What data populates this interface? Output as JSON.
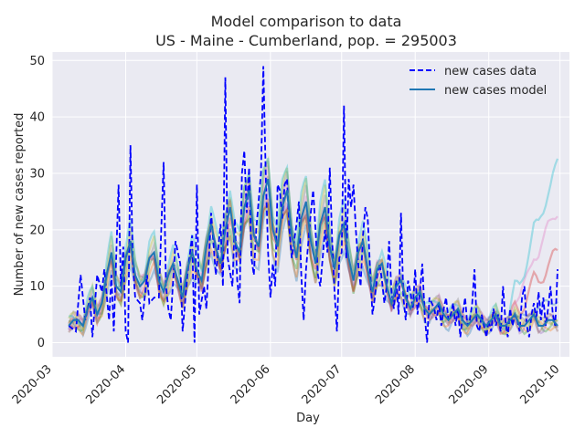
{
  "chart_data": {
    "type": "line",
    "title": "Model comparison to data",
    "subtitle": "US - Maine - Cumberland, pop. = 295003",
    "xlabel": "Day",
    "ylabel": "Number of new cases reported",
    "x_range": [
      "2020-03-01",
      "2020-10-05"
    ],
    "ylim": [
      -2.5,
      51.5
    ],
    "x_ticks": [
      "2020-03",
      "2020-04",
      "2020-05",
      "2020-06",
      "2020-07",
      "2020-08",
      "2020-09",
      "2020-10"
    ],
    "y_ticks": [
      0,
      10,
      20,
      30,
      40,
      50
    ],
    "grid": true,
    "legend_position": "top-right",
    "style": {
      "background": "#eaeaf2",
      "data_color": "#0000ff",
      "model_color": "#1f77b4",
      "ensemble_colors": [
        "#1f77b4",
        "#ff7f0e",
        "#2ca02c",
        "#d62728",
        "#9467bd",
        "#8c564b",
        "#e377c2",
        "#7f7f7f",
        "#bcbd22",
        "#17becf"
      ]
    },
    "series": [
      {
        "name": "new cases data",
        "style": "dashed",
        "points": [
          [
            "2020-03-08",
            3
          ],
          [
            "2020-03-11",
            2
          ],
          [
            "2020-03-13",
            12
          ],
          [
            "2020-03-15",
            4
          ],
          [
            "2020-03-17",
            8
          ],
          [
            "2020-03-18",
            1
          ],
          [
            "2020-03-20",
            12
          ],
          [
            "2020-03-22",
            9
          ],
          [
            "2020-03-23",
            13
          ],
          [
            "2020-03-25",
            4
          ],
          [
            "2020-03-26",
            12
          ],
          [
            "2020-03-27",
            2
          ],
          [
            "2020-03-29",
            28
          ],
          [
            "2020-03-30",
            10
          ],
          [
            "2020-03-31",
            17
          ],
          [
            "2020-04-01",
            2
          ],
          [
            "2020-04-02",
            0
          ],
          [
            "2020-04-03",
            35
          ],
          [
            "2020-04-04",
            14
          ],
          [
            "2020-04-05",
            8
          ],
          [
            "2020-04-07",
            7
          ],
          [
            "2020-04-08",
            4
          ],
          [
            "2020-04-10",
            12
          ],
          [
            "2020-04-11",
            7
          ],
          [
            "2020-04-13",
            8
          ],
          [
            "2020-04-15",
            8
          ],
          [
            "2020-04-17",
            32
          ],
          [
            "2020-04-18",
            10
          ],
          [
            "2020-04-19",
            6
          ],
          [
            "2020-04-20",
            4
          ],
          [
            "2020-04-22",
            18
          ],
          [
            "2020-04-24",
            14
          ],
          [
            "2020-04-25",
            2
          ],
          [
            "2020-04-27",
            12
          ],
          [
            "2020-04-29",
            19
          ],
          [
            "2020-04-30",
            0
          ],
          [
            "2020-05-01",
            28
          ],
          [
            "2020-05-02",
            5
          ],
          [
            "2020-05-04",
            10
          ],
          [
            "2020-05-05",
            6
          ],
          [
            "2020-05-07",
            23
          ],
          [
            "2020-05-09",
            12
          ],
          [
            "2020-05-11",
            21
          ],
          [
            "2020-05-12",
            10
          ],
          [
            "2020-05-13",
            47
          ],
          [
            "2020-05-14",
            15
          ],
          [
            "2020-05-16",
            10
          ],
          [
            "2020-05-17",
            22
          ],
          [
            "2020-05-18",
            11
          ],
          [
            "2020-05-19",
            7
          ],
          [
            "2020-05-20",
            30
          ],
          [
            "2020-05-21",
            34
          ],
          [
            "2020-05-22",
            23
          ],
          [
            "2020-05-23",
            31
          ],
          [
            "2020-05-24",
            15
          ],
          [
            "2020-05-25",
            12
          ],
          [
            "2020-05-26",
            20
          ],
          [
            "2020-05-28",
            30
          ],
          [
            "2020-05-29",
            49
          ],
          [
            "2020-05-30",
            30
          ],
          [
            "2020-05-31",
            16
          ],
          [
            "2020-06-01",
            8
          ],
          [
            "2020-06-02",
            14
          ],
          [
            "2020-06-03",
            10
          ],
          [
            "2020-06-04",
            28
          ],
          [
            "2020-06-05",
            27
          ],
          [
            "2020-06-06",
            22
          ],
          [
            "2020-06-07",
            28
          ],
          [
            "2020-06-08",
            29
          ],
          [
            "2020-06-09",
            20
          ],
          [
            "2020-06-10",
            15
          ],
          [
            "2020-06-12",
            21
          ],
          [
            "2020-06-13",
            25
          ],
          [
            "2020-06-14",
            12
          ],
          [
            "2020-06-15",
            4
          ],
          [
            "2020-06-16",
            13
          ],
          [
            "2020-06-18",
            23
          ],
          [
            "2020-06-19",
            27
          ],
          [
            "2020-06-20",
            20
          ],
          [
            "2020-06-21",
            12
          ],
          [
            "2020-06-22",
            10
          ],
          [
            "2020-06-24",
            20
          ],
          [
            "2020-06-25",
            16
          ],
          [
            "2020-06-26",
            31
          ],
          [
            "2020-06-27",
            18
          ],
          [
            "2020-06-28",
            9
          ],
          [
            "2020-06-29",
            2
          ],
          [
            "2020-06-30",
            15
          ],
          [
            "2020-07-01",
            16
          ],
          [
            "2020-07-02",
            42
          ],
          [
            "2020-07-03",
            15
          ],
          [
            "2020-07-04",
            29
          ],
          [
            "2020-07-05",
            24
          ],
          [
            "2020-07-06",
            28
          ],
          [
            "2020-07-07",
            20
          ],
          [
            "2020-07-08",
            14
          ],
          [
            "2020-07-09",
            10
          ],
          [
            "2020-07-10",
            19
          ],
          [
            "2020-07-11",
            24
          ],
          [
            "2020-07-12",
            22
          ],
          [
            "2020-07-13",
            13
          ],
          [
            "2020-07-14",
            5
          ],
          [
            "2020-07-15",
            8
          ],
          [
            "2020-07-16",
            12
          ],
          [
            "2020-07-17",
            14
          ],
          [
            "2020-07-18",
            11
          ],
          [
            "2020-07-19",
            7
          ],
          [
            "2020-07-20",
            10
          ],
          [
            "2020-07-21",
            18
          ],
          [
            "2020-07-22",
            9
          ],
          [
            "2020-07-23",
            6
          ],
          [
            "2020-07-24",
            11
          ],
          [
            "2020-07-25",
            5
          ],
          [
            "2020-07-26",
            23
          ],
          [
            "2020-07-27",
            8
          ],
          [
            "2020-07-28",
            4
          ],
          [
            "2020-07-29",
            11
          ],
          [
            "2020-07-30",
            9
          ],
          [
            "2020-07-31",
            6
          ],
          [
            "2020-08-01",
            13
          ],
          [
            "2020-08-02",
            5
          ],
          [
            "2020-08-03",
            9
          ],
          [
            "2020-08-04",
            14
          ],
          [
            "2020-08-05",
            5
          ],
          [
            "2020-08-06",
            0
          ],
          [
            "2020-08-07",
            8
          ],
          [
            "2020-08-08",
            7
          ],
          [
            "2020-08-09",
            6
          ],
          [
            "2020-08-10",
            4
          ],
          [
            "2020-08-11",
            7
          ],
          [
            "2020-08-12",
            3
          ],
          [
            "2020-08-13",
            6
          ],
          [
            "2020-08-14",
            8
          ],
          [
            "2020-08-15",
            4
          ],
          [
            "2020-08-16",
            5
          ],
          [
            "2020-08-17",
            7
          ],
          [
            "2020-08-18",
            3
          ],
          [
            "2020-08-19",
            6
          ],
          [
            "2020-08-20",
            1
          ],
          [
            "2020-08-21",
            5
          ],
          [
            "2020-08-22",
            8
          ],
          [
            "2020-08-23",
            3
          ],
          [
            "2020-08-24",
            4
          ],
          [
            "2020-08-25",
            7
          ],
          [
            "2020-08-26",
            13
          ],
          [
            "2020-08-27",
            3
          ],
          [
            "2020-08-28",
            2
          ],
          [
            "2020-08-29",
            5
          ],
          [
            "2020-08-30",
            3
          ],
          [
            "2020-08-31",
            1
          ],
          [
            "2020-09-01",
            4
          ],
          [
            "2020-09-02",
            2
          ],
          [
            "2020-09-03",
            6
          ],
          [
            "2020-09-04",
            3
          ],
          [
            "2020-09-05",
            5
          ],
          [
            "2020-09-06",
            2
          ],
          [
            "2020-09-07",
            10
          ],
          [
            "2020-09-08",
            4
          ],
          [
            "2020-09-09",
            1
          ],
          [
            "2020-09-10",
            6
          ],
          [
            "2020-09-11",
            3
          ],
          [
            "2020-09-12",
            5
          ],
          [
            "2020-09-13",
            4
          ],
          [
            "2020-09-14",
            2
          ],
          [
            "2020-09-15",
            8
          ],
          [
            "2020-09-16",
            10
          ],
          [
            "2020-09-17",
            3
          ],
          [
            "2020-09-18",
            1
          ],
          [
            "2020-09-19",
            5
          ],
          [
            "2020-09-20",
            7
          ],
          [
            "2020-09-21",
            4
          ],
          [
            "2020-09-22",
            9
          ],
          [
            "2020-09-23",
            4
          ],
          [
            "2020-09-24",
            8
          ],
          [
            "2020-09-25",
            3
          ],
          [
            "2020-09-26",
            6
          ],
          [
            "2020-09-27",
            10
          ],
          [
            "2020-09-28",
            5
          ],
          [
            "2020-09-29",
            3
          ],
          [
            "2020-09-30",
            13
          ]
        ]
      },
      {
        "name": "new cases model",
        "style": "solid",
        "points": [
          [
            "2020-03-08",
            3
          ],
          [
            "2020-03-10",
            4
          ],
          [
            "2020-03-12",
            4
          ],
          [
            "2020-03-14",
            3
          ],
          [
            "2020-03-16",
            6
          ],
          [
            "2020-03-18",
            8
          ],
          [
            "2020-03-20",
            5
          ],
          [
            "2020-03-22",
            7
          ],
          [
            "2020-03-24",
            12
          ],
          [
            "2020-03-26",
            16
          ],
          [
            "2020-03-28",
            10
          ],
          [
            "2020-03-30",
            9
          ],
          [
            "2020-04-01",
            15
          ],
          [
            "2020-04-03",
            18
          ],
          [
            "2020-04-05",
            12
          ],
          [
            "2020-04-07",
            10
          ],
          [
            "2020-04-09",
            11
          ],
          [
            "2020-04-11",
            15
          ],
          [
            "2020-04-13",
            16
          ],
          [
            "2020-04-15",
            11
          ],
          [
            "2020-04-17",
            9
          ],
          [
            "2020-04-19",
            12
          ],
          [
            "2020-04-21",
            14
          ],
          [
            "2020-04-23",
            11
          ],
          [
            "2020-04-25",
            8
          ],
          [
            "2020-04-27",
            13
          ],
          [
            "2020-04-29",
            16
          ],
          [
            "2020-05-01",
            13
          ],
          [
            "2020-05-03",
            11
          ],
          [
            "2020-05-05",
            17
          ],
          [
            "2020-05-07",
            21
          ],
          [
            "2020-05-09",
            17
          ],
          [
            "2020-05-11",
            14
          ],
          [
            "2020-05-13",
            20
          ],
          [
            "2020-05-15",
            24
          ],
          [
            "2020-05-17",
            18
          ],
          [
            "2020-05-19",
            16
          ],
          [
            "2020-05-21",
            24
          ],
          [
            "2020-05-23",
            27
          ],
          [
            "2020-05-25",
            19
          ],
          [
            "2020-05-27",
            17
          ],
          [
            "2020-05-29",
            26
          ],
          [
            "2020-05-31",
            29
          ],
          [
            "2020-06-02",
            20
          ],
          [
            "2020-06-04",
            17
          ],
          [
            "2020-06-06",
            24
          ],
          [
            "2020-06-08",
            27
          ],
          [
            "2020-06-10",
            19
          ],
          [
            "2020-06-12",
            15
          ],
          [
            "2020-06-14",
            22
          ],
          [
            "2020-06-16",
            25
          ],
          [
            "2020-06-18",
            18
          ],
          [
            "2020-06-20",
            14
          ],
          [
            "2020-06-22",
            21
          ],
          [
            "2020-06-24",
            24
          ],
          [
            "2020-06-26",
            17
          ],
          [
            "2020-06-28",
            13
          ],
          [
            "2020-06-30",
            19
          ],
          [
            "2020-07-02",
            21
          ],
          [
            "2020-07-04",
            15
          ],
          [
            "2020-07-06",
            11
          ],
          [
            "2020-07-08",
            16
          ],
          [
            "2020-07-10",
            18
          ],
          [
            "2020-07-12",
            13
          ],
          [
            "2020-07-14",
            9
          ],
          [
            "2020-07-16",
            13
          ],
          [
            "2020-07-18",
            14
          ],
          [
            "2020-07-20",
            10
          ],
          [
            "2020-07-22",
            7
          ],
          [
            "2020-07-24",
            10
          ],
          [
            "2020-07-26",
            11
          ],
          [
            "2020-07-28",
            8
          ],
          [
            "2020-07-30",
            6
          ],
          [
            "2020-08-01",
            8
          ],
          [
            "2020-08-03",
            9
          ],
          [
            "2020-08-05",
            6
          ],
          [
            "2020-08-07",
            5
          ],
          [
            "2020-08-09",
            6
          ],
          [
            "2020-08-11",
            7
          ],
          [
            "2020-08-13",
            5
          ],
          [
            "2020-08-15",
            4
          ],
          [
            "2020-08-17",
            5
          ],
          [
            "2020-08-19",
            6
          ],
          [
            "2020-08-21",
            4
          ],
          [
            "2020-08-23",
            3
          ],
          [
            "2020-08-25",
            4
          ],
          [
            "2020-08-27",
            5
          ],
          [
            "2020-08-29",
            4
          ],
          [
            "2020-08-31",
            3
          ],
          [
            "2020-09-02",
            4
          ],
          [
            "2020-09-04",
            5
          ],
          [
            "2020-09-06",
            3
          ],
          [
            "2020-09-08",
            3
          ],
          [
            "2020-09-10",
            4
          ],
          [
            "2020-09-12",
            5
          ],
          [
            "2020-09-14",
            3
          ],
          [
            "2020-09-16",
            3
          ],
          [
            "2020-09-18",
            4
          ],
          [
            "2020-09-20",
            5
          ],
          [
            "2020-09-22",
            3
          ],
          [
            "2020-09-24",
            3
          ],
          [
            "2020-09-26",
            4
          ],
          [
            "2020-09-28",
            4
          ],
          [
            "2020-09-30",
            3
          ]
        ]
      }
    ]
  }
}
